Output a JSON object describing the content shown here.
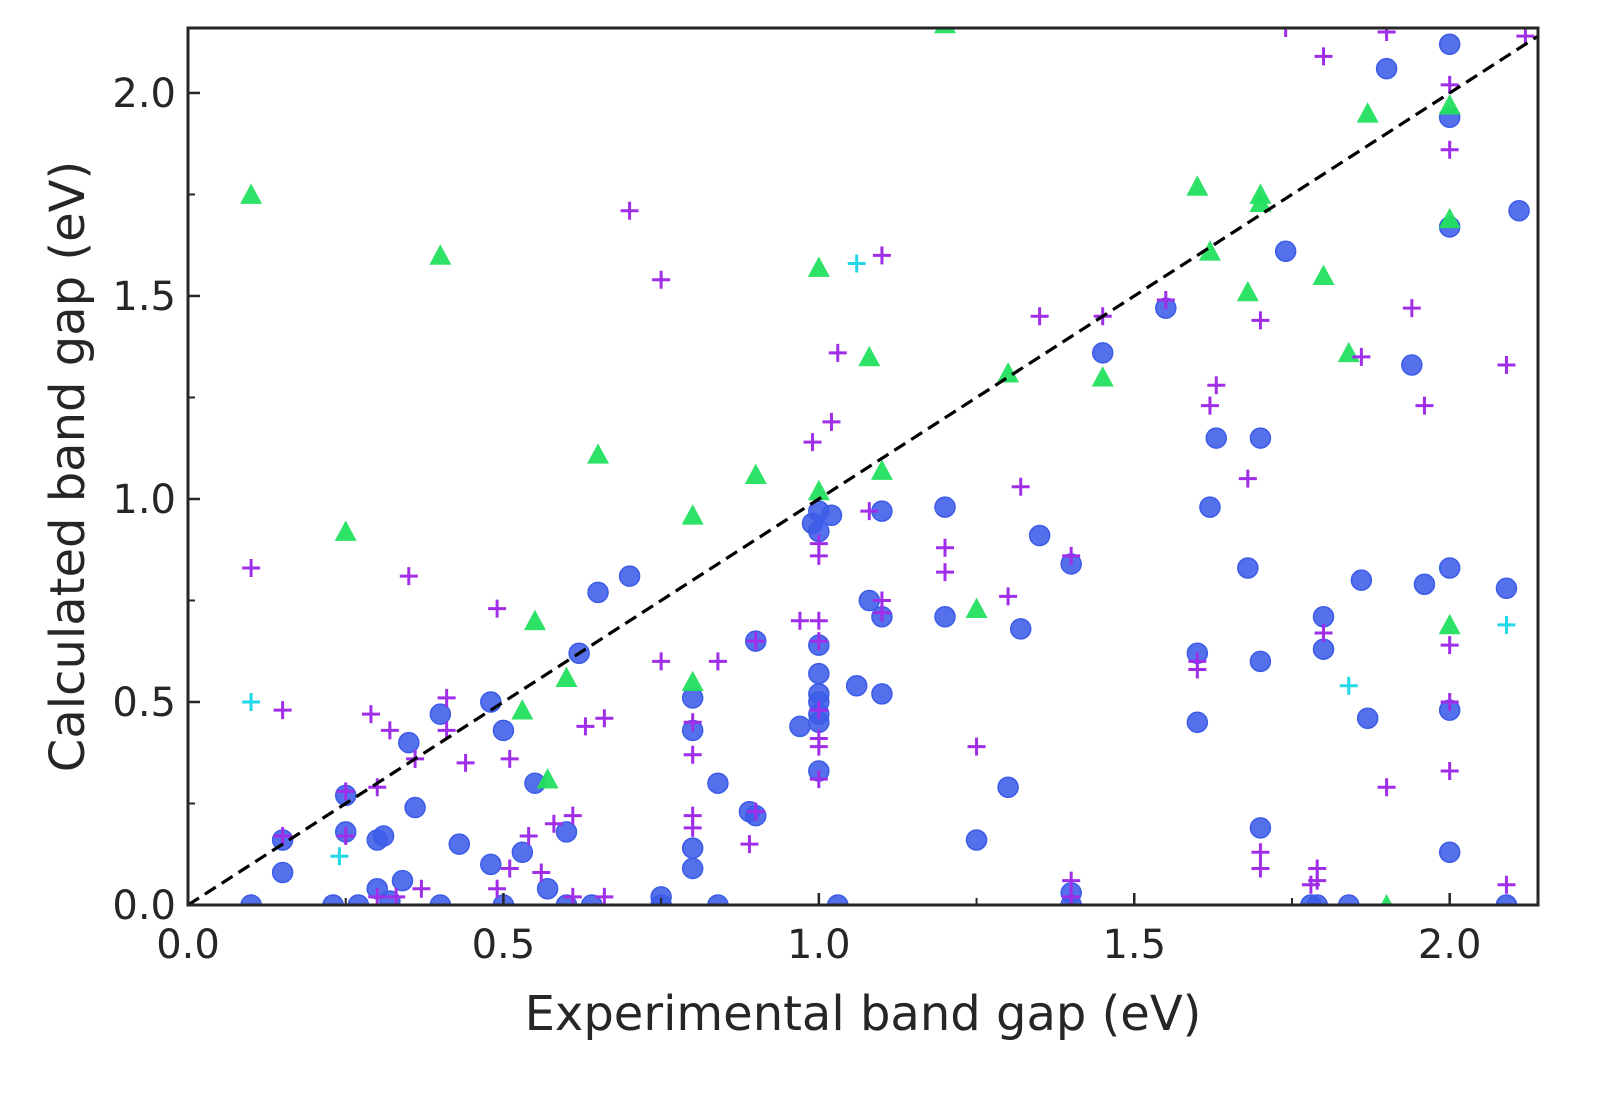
{
  "chart_data": {
    "type": "scatter",
    "title": "",
    "xlabel": "Experimental band gap (eV)",
    "ylabel": "Calculated band gap (eV)",
    "xlim": [
      0,
      2.14
    ],
    "ylim": [
      0,
      2.16
    ],
    "x_ticks": [
      "0.0",
      "0.5",
      "1.0",
      "1.5",
      "2.0"
    ],
    "y_ticks": [
      "0.0",
      "0.5",
      "1.0",
      "1.5",
      "2.0"
    ],
    "grid": false,
    "reference_line": {
      "style": "dashed",
      "color": "#000000",
      "from": [
        0,
        0
      ],
      "to": [
        2.14,
        2.14
      ]
    },
    "series": [
      {
        "marker": "circle",
        "color": "#3c5ce8",
        "points": [
          [
            0.1,
            0.0
          ],
          [
            0.15,
            0.16
          ],
          [
            0.15,
            0.08
          ],
          [
            0.23,
            0.0
          ],
          [
            0.25,
            0.27
          ],
          [
            0.25,
            0.18
          ],
          [
            0.27,
            0.0
          ],
          [
            0.3,
            0.16
          ],
          [
            0.31,
            0.17
          ],
          [
            0.3,
            0.04
          ],
          [
            0.32,
            0.01
          ],
          [
            0.34,
            0.06
          ],
          [
            0.35,
            0.4
          ],
          [
            0.36,
            0.24
          ],
          [
            0.4,
            0.47
          ],
          [
            0.4,
            0.0
          ],
          [
            0.43,
            0.15
          ],
          [
            0.48,
            0.5
          ],
          [
            0.48,
            0.1
          ],
          [
            0.5,
            0.43
          ],
          [
            0.5,
            0.0
          ],
          [
            0.53,
            0.13
          ],
          [
            0.55,
            0.3
          ],
          [
            0.57,
            0.04
          ],
          [
            0.6,
            0.18
          ],
          [
            0.6,
            0.0
          ],
          [
            0.62,
            0.62
          ],
          [
            0.64,
            0.0
          ],
          [
            0.65,
            0.77
          ],
          [
            0.7,
            0.81
          ],
          [
            0.75,
            0.02
          ],
          [
            0.75,
            0.0
          ],
          [
            0.8,
            0.51
          ],
          [
            0.8,
            0.43
          ],
          [
            0.8,
            0.14
          ],
          [
            0.8,
            0.09
          ],
          [
            0.84,
            0.3
          ],
          [
            0.84,
            0.0
          ],
          [
            0.89,
            0.23
          ],
          [
            0.9,
            0.22
          ],
          [
            0.9,
            0.65
          ],
          [
            0.97,
            0.44
          ],
          [
            0.99,
            0.94
          ],
          [
            1.0,
            0.97
          ],
          [
            1.0,
            0.92
          ],
          [
            1.0,
            0.64
          ],
          [
            1.0,
            0.57
          ],
          [
            1.0,
            0.52
          ],
          [
            1.0,
            0.5
          ],
          [
            1.0,
            0.47
          ],
          [
            1.0,
            0.45
          ],
          [
            1.0,
            0.33
          ],
          [
            1.02,
            0.96
          ],
          [
            1.03,
            0.0
          ],
          [
            1.06,
            0.54
          ],
          [
            1.08,
            0.75
          ],
          [
            1.1,
            0.97
          ],
          [
            1.1,
            0.71
          ],
          [
            1.1,
            0.52
          ],
          [
            1.2,
            0.98
          ],
          [
            1.2,
            0.71
          ],
          [
            1.25,
            0.16
          ],
          [
            1.3,
            0.29
          ],
          [
            1.32,
            0.68
          ],
          [
            1.35,
            0.91
          ],
          [
            1.4,
            0.84
          ],
          [
            1.4,
            0.03
          ],
          [
            1.4,
            0.0
          ],
          [
            1.45,
            1.36
          ],
          [
            1.55,
            1.47
          ],
          [
            1.6,
            0.62
          ],
          [
            1.6,
            0.45
          ],
          [
            1.62,
            0.98
          ],
          [
            1.63,
            1.15
          ],
          [
            1.68,
            0.83
          ],
          [
            1.7,
            1.15
          ],
          [
            1.7,
            0.6
          ],
          [
            1.7,
            0.19
          ],
          [
            1.74,
            1.61
          ],
          [
            1.78,
            0.0
          ],
          [
            1.79,
            0.0
          ],
          [
            1.8,
            0.71
          ],
          [
            1.8,
            0.63
          ],
          [
            1.84,
            0.0
          ],
          [
            1.86,
            0.8
          ],
          [
            1.87,
            0.46
          ],
          [
            1.9,
            2.06
          ],
          [
            1.94,
            1.33
          ],
          [
            1.96,
            0.79
          ],
          [
            2.0,
            2.12
          ],
          [
            2.0,
            1.94
          ],
          [
            2.0,
            1.67
          ],
          [
            2.0,
            0.83
          ],
          [
            2.0,
            0.48
          ],
          [
            2.0,
            0.13
          ],
          [
            2.09,
            0.0
          ],
          [
            2.09,
            0.78
          ],
          [
            2.11,
            1.71
          ]
        ]
      },
      {
        "marker": "triangle",
        "color": "#22e05e",
        "points": [
          [
            0.1,
            1.75
          ],
          [
            0.25,
            0.92
          ],
          [
            0.4,
            1.6
          ],
          [
            0.53,
            0.48
          ],
          [
            0.55,
            0.7
          ],
          [
            0.57,
            0.31
          ],
          [
            0.6,
            0.56
          ],
          [
            0.65,
            1.11
          ],
          [
            0.8,
            0.96
          ],
          [
            0.8,
            0.55
          ],
          [
            0.9,
            1.06
          ],
          [
            1.0,
            1.57
          ],
          [
            1.0,
            1.02
          ],
          [
            1.08,
            1.35
          ],
          [
            1.1,
            1.07
          ],
          [
            1.2,
            2.17
          ],
          [
            1.25,
            0.73
          ],
          [
            1.3,
            1.31
          ],
          [
            1.45,
            1.3
          ],
          [
            1.6,
            1.77
          ],
          [
            1.62,
            1.61
          ],
          [
            1.68,
            1.51
          ],
          [
            1.7,
            1.75
          ],
          [
            1.7,
            1.73
          ],
          [
            1.8,
            1.55
          ],
          [
            1.84,
            1.36
          ],
          [
            1.87,
            1.95
          ],
          [
            1.9,
            0.0
          ],
          [
            2.0,
            1.97
          ],
          [
            2.0,
            1.69
          ],
          [
            2.0,
            0.69
          ]
        ]
      },
      {
        "marker": "plus",
        "color": "#a02ee8",
        "points": [
          [
            0.1,
            0.83
          ],
          [
            0.15,
            0.48
          ],
          [
            0.15,
            0.17
          ],
          [
            0.25,
            0.28
          ],
          [
            0.25,
            0.17
          ],
          [
            0.29,
            0.47
          ],
          [
            0.3,
            0.29
          ],
          [
            0.3,
            0.02
          ],
          [
            0.32,
            0.43
          ],
          [
            0.33,
            0.02
          ],
          [
            0.35,
            0.81
          ],
          [
            0.36,
            0.36
          ],
          [
            0.37,
            0.04
          ],
          [
            0.41,
            0.51
          ],
          [
            0.41,
            0.43
          ],
          [
            0.44,
            0.35
          ],
          [
            0.49,
            0.73
          ],
          [
            0.49,
            0.04
          ],
          [
            0.51,
            0.36
          ],
          [
            0.51,
            0.09
          ],
          [
            0.54,
            0.17
          ],
          [
            0.56,
            0.08
          ],
          [
            0.58,
            0.2
          ],
          [
            0.61,
            0.22
          ],
          [
            0.61,
            0.02
          ],
          [
            0.63,
            0.44
          ],
          [
            0.66,
            0.46
          ],
          [
            0.66,
            0.02
          ],
          [
            0.7,
            1.71
          ],
          [
            0.75,
            1.54
          ],
          [
            0.75,
            0.6
          ],
          [
            0.8,
            0.45
          ],
          [
            0.8,
            0.37
          ],
          [
            0.8,
            0.22
          ],
          [
            0.8,
            0.19
          ],
          [
            0.84,
            0.6
          ],
          [
            0.89,
            0.15
          ],
          [
            0.9,
            0.65
          ],
          [
            0.9,
            0.23
          ],
          [
            0.97,
            0.7
          ],
          [
            0.99,
            1.14
          ],
          [
            1.0,
            0.89
          ],
          [
            1.0,
            0.86
          ],
          [
            1.0,
            0.7
          ],
          [
            1.0,
            0.65
          ],
          [
            1.0,
            0.48
          ],
          [
            1.0,
            0.41
          ],
          [
            1.0,
            0.39
          ],
          [
            1.0,
            0.31
          ],
          [
            1.02,
            1.19
          ],
          [
            1.03,
            1.36
          ],
          [
            1.08,
            0.97
          ],
          [
            1.1,
            1.6
          ],
          [
            1.1,
            0.75
          ],
          [
            1.1,
            0.72
          ],
          [
            1.2,
            0.88
          ],
          [
            1.2,
            0.82
          ],
          [
            1.25,
            0.39
          ],
          [
            1.3,
            0.76
          ],
          [
            1.32,
            1.03
          ],
          [
            1.35,
            1.45
          ],
          [
            1.4,
            0.86
          ],
          [
            1.4,
            0.06
          ],
          [
            1.4,
            0.02
          ],
          [
            1.45,
            1.45
          ],
          [
            1.55,
            1.49
          ],
          [
            1.6,
            0.6
          ],
          [
            1.6,
            0.58
          ],
          [
            1.62,
            1.23
          ],
          [
            1.63,
            1.28
          ],
          [
            1.68,
            1.05
          ],
          [
            1.7,
            1.44
          ],
          [
            1.7,
            0.13
          ],
          [
            1.7,
            0.09
          ],
          [
            1.74,
            2.16
          ],
          [
            1.78,
            0.05
          ],
          [
            1.79,
            0.09
          ],
          [
            1.79,
            0.06
          ],
          [
            1.8,
            2.09
          ],
          [
            1.8,
            0.67
          ],
          [
            1.86,
            1.35
          ],
          [
            1.9,
            2.15
          ],
          [
            1.9,
            0.29
          ],
          [
            1.94,
            1.47
          ],
          [
            1.96,
            1.23
          ],
          [
            2.0,
            2.02
          ],
          [
            2.0,
            1.86
          ],
          [
            2.0,
            0.64
          ],
          [
            2.0,
            0.5
          ],
          [
            2.0,
            0.33
          ],
          [
            2.09,
            1.33
          ],
          [
            2.09,
            0.05
          ],
          [
            2.12,
            2.14
          ]
        ]
      },
      {
        "marker": "plus",
        "color": "#22d8e8",
        "points": [
          [
            0.1,
            0.5
          ],
          [
            0.24,
            0.12
          ],
          [
            1.06,
            1.58
          ],
          [
            1.84,
            0.54
          ],
          [
            2.09,
            0.69
          ]
        ]
      }
    ]
  }
}
